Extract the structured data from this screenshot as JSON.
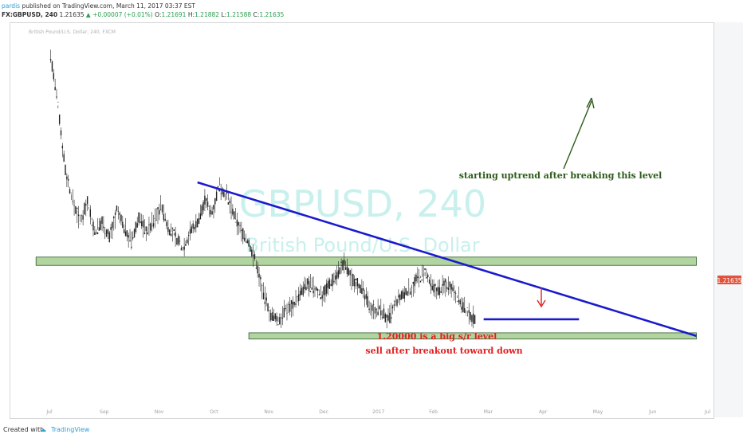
{
  "header": {
    "author": "pardis",
    "published": "published on TradingView.com, March 11, 2017 03:37 EST",
    "symbol": "FX:GBPUSD, 240",
    "last": "1.21635",
    "change": "+0.00007 (+0.01%)",
    "o_label": "O:",
    "o_value": "1.21691",
    "h_label": "H:",
    "h_value": "1.21882",
    "l_label": "L:",
    "l_value": "1.21588",
    "c_label": "C:",
    "c_value": "1.21635",
    "sub_title": "British Pound/U.S. Dollar, 240, FXCM"
  },
  "footer": {
    "created_with": "Created with",
    "brand": "TradingView"
  },
  "colors": {
    "trendline": "#1a1acc",
    "zone_fill": "#a3cd8f",
    "zone_border": "#2e5e2a",
    "up_arrow": "#2d5a1a",
    "down_arrow": "#e02020",
    "label_price_bg": "#e0533c",
    "candles": "#222222",
    "watermark": "#c8f0ec"
  },
  "watermark": {
    "main": "GBPUSD, 240",
    "sub": "British Pound/U.S. Dollar"
  },
  "chart_data": {
    "type": "line",
    "title": "FX:GBPUSD, 240",
    "x_ticks": [
      "Jul",
      "Sep",
      "Nov",
      "Oct",
      "Nov",
      "Dec",
      "2017",
      "Feb",
      "Mar",
      "Apr",
      "May",
      "Jun",
      "Jul"
    ],
    "current_price": "1.21635",
    "annotations": {
      "uptrend": "starting uptrend after breaking this level",
      "sr_level": "1.20000 is a big s/r level",
      "sell": "sell after breakout toward down"
    },
    "price_series": [
      [
        0,
        1.47
      ],
      [
        1,
        1.42
      ],
      [
        2,
        1.36
      ],
      [
        3,
        1.33
      ],
      [
        4,
        1.31
      ],
      [
        5,
        1.33
      ],
      [
        6,
        1.3
      ],
      [
        7,
        1.31
      ],
      [
        8,
        1.295
      ],
      [
        9,
        1.32
      ],
      [
        10,
        1.305
      ],
      [
        11,
        1.29
      ],
      [
        12,
        1.315
      ],
      [
        13,
        1.3
      ],
      [
        14,
        1.31
      ],
      [
        15,
        1.325
      ],
      [
        16,
        1.305
      ],
      [
        17,
        1.295
      ],
      [
        18,
        1.285
      ],
      [
        19,
        1.3
      ],
      [
        20,
        1.31
      ],
      [
        21,
        1.33
      ],
      [
        22,
        1.32
      ],
      [
        23,
        1.345
      ],
      [
        24,
        1.335
      ],
      [
        25,
        1.315
      ],
      [
        26,
        1.3
      ],
      [
        27,
        1.29
      ],
      [
        28,
        1.27
      ],
      [
        29,
        1.24
      ],
      [
        30,
        1.22
      ],
      [
        31,
        1.215
      ],
      [
        32,
        1.225
      ],
      [
        33,
        1.23
      ],
      [
        34,
        1.24
      ],
      [
        35,
        1.25
      ],
      [
        36,
        1.245
      ],
      [
        37,
        1.24
      ],
      [
        38,
        1.25
      ],
      [
        39,
        1.26
      ],
      [
        40,
        1.27
      ],
      [
        41,
        1.255
      ],
      [
        42,
        1.25
      ],
      [
        43,
        1.235
      ],
      [
        44,
        1.225
      ],
      [
        45,
        1.225
      ],
      [
        46,
        1.215
      ],
      [
        47,
        1.23
      ],
      [
        48,
        1.24
      ],
      [
        49,
        1.245
      ],
      [
        50,
        1.255
      ],
      [
        51,
        1.26
      ],
      [
        52,
        1.245
      ],
      [
        53,
        1.245
      ],
      [
        54,
        1.25
      ],
      [
        55,
        1.245
      ],
      [
        56,
        1.23
      ],
      [
        57,
        1.22
      ],
      [
        58,
        1.216
      ]
    ],
    "trendline": {
      "from": [
        20,
        1.348
      ],
      "to": [
        88,
        1.2
      ]
    },
    "resistance_zone": {
      "y_low": 1.268,
      "y_high": 1.276,
      "x_from": -2,
      "x_to": 88
    },
    "support_zone": {
      "y_low": 1.197,
      "y_high": 1.203,
      "x_from": 27,
      "x_to": 88
    },
    "break_line": {
      "y": 1.216,
      "x_from": 59,
      "x_to": 72
    },
    "y_range": [
      1.14,
      1.49
    ],
    "x_range": [
      -3,
      90
    ]
  }
}
